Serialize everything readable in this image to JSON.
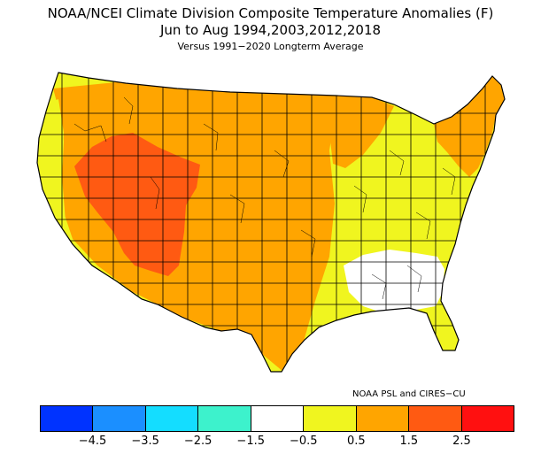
{
  "title": {
    "line1": "NOAA/NCEI Climate Division Composite Temperature Anomalies (F)",
    "line2": "Jun to Aug  1994,2003,2012,2018",
    "line3": "Versus 1991−2020 Longterm Average"
  },
  "credit": "NOAA PSL and CIRES−CU",
  "colors": {
    "below_minus_4_5": "#0033ff",
    "minus_4_5_to_minus_3_5": "#1b8fff",
    "minus_3_5_to_minus_2_5": "#14ddff",
    "minus_2_5_to_minus_1_5": "#3df2cc",
    "minus_1_5_to_minus_0_5": "#ffffff",
    "minus_0_5_to_0_5": "#f0f51f",
    "0_5_to_1_5": "#ffa500",
    "1_5_to_2_5": "#ff5a12",
    "above_2_5": "#ff1010",
    "borders": "#000000"
  },
  "colorbar": {
    "swatches": [
      "#0033ff",
      "#1b8fff",
      "#14ddff",
      "#3df2cc",
      "#ffffff",
      "#f0f51f",
      "#ffa500",
      "#ff5a12",
      "#ff1010"
    ],
    "tick_labels": [
      "−4.5",
      "−3.5",
      "−2.5",
      "−1.5",
      "−0.5",
      "0.5",
      "1.5",
      "2.5"
    ]
  },
  "regions": {
    "white_southeast": "-1.5 to -0.5",
    "yellow_east_gulf_pacific": "-0.5 to 0.5",
    "orange_plains_west_northeast": "0.5 to 1.5",
    "red_orange_great_basin_four_corners": "1.5 to 2.5"
  }
}
